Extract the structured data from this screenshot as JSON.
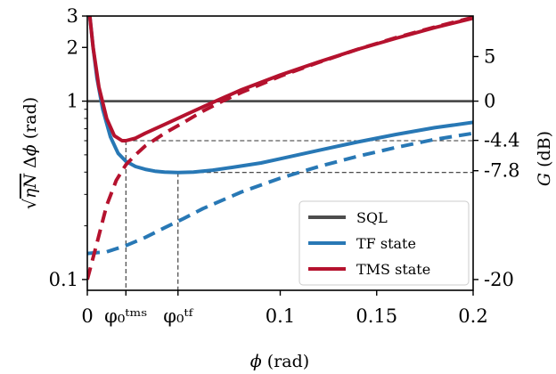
{
  "chart_data": {
    "type": "line",
    "xlabel": "φ (rad)",
    "ylabel": "√(ηN) Δφ (rad)",
    "ylabel_right": "G (dB)",
    "xlim": [
      0,
      0.2
    ],
    "ylim": [
      0.087,
      3
    ],
    "yscale": "log",
    "x_ticks": [
      {
        "value": 0,
        "label": "0"
      },
      {
        "value": 0.02,
        "label": "φ₀ᵗᵐˢ"
      },
      {
        "value": 0.047,
        "label": "φ₀ᵗᶠ"
      },
      {
        "value": 0.1,
        "label": "0.1"
      },
      {
        "value": 0.15,
        "label": "0.15"
      },
      {
        "value": 0.2,
        "label": "0.2"
      }
    ],
    "y_ticks": [
      {
        "value": 3,
        "label": "3"
      },
      {
        "value": 2,
        "label": "2"
      },
      {
        "value": 1,
        "label": "1"
      },
      {
        "value": 0.1,
        "label": "0.1"
      }
    ],
    "y_right_ticks": [
      {
        "value": 5,
        "label": "5"
      },
      {
        "value": 0,
        "label": "0"
      },
      {
        "value": -4.4,
        "label": "-4.4"
      },
      {
        "value": -7.8,
        "label": "-7.8"
      },
      {
        "value": -20,
        "label": "-20"
      }
    ],
    "legend": {
      "position": "lower-right",
      "entries": [
        "SQL",
        "TF state",
        "TMS state"
      ]
    },
    "series": [
      {
        "name": "SQL",
        "color": "#4d4d4d",
        "style": "solid",
        "x": [
          0,
          0.2
        ],
        "y": [
          1,
          1
        ]
      },
      {
        "name": "TF state",
        "color": "#2878b5",
        "style": "solid",
        "x": [
          0.001,
          0.003,
          0.005,
          0.008,
          0.012,
          0.016,
          0.02,
          0.025,
          0.03,
          0.035,
          0.04,
          0.047,
          0.055,
          0.065,
          0.075,
          0.09,
          0.1,
          0.12,
          0.14,
          0.16,
          0.18,
          0.2
        ],
        "y": [
          3.2,
          2.0,
          1.35,
          0.9,
          0.63,
          0.51,
          0.46,
          0.43,
          0.415,
          0.405,
          0.4,
          0.398,
          0.4,
          0.41,
          0.425,
          0.45,
          0.475,
          0.53,
          0.59,
          0.65,
          0.71,
          0.76
        ]
      },
      {
        "name": "TF state (limit)",
        "color": "#2878b5",
        "style": "dashed",
        "x": [
          0,
          0.01,
          0.02,
          0.03,
          0.04,
          0.05,
          0.06,
          0.08,
          0.1,
          0.12,
          0.14,
          0.16,
          0.18,
          0.2
        ],
        "y": [
          0.14,
          0.143,
          0.155,
          0.172,
          0.195,
          0.22,
          0.25,
          0.31,
          0.37,
          0.43,
          0.49,
          0.55,
          0.61,
          0.66
        ]
      },
      {
        "name": "TMS state",
        "color": "#b5122e",
        "style": "solid",
        "x": [
          0.001,
          0.003,
          0.006,
          0.01,
          0.014,
          0.018,
          0.02,
          0.025,
          0.03,
          0.04,
          0.05,
          0.06,
          0.07,
          0.08,
          0.1,
          0.12,
          0.14,
          0.16,
          0.18,
          0.2
        ],
        "y": [
          3.2,
          2.0,
          1.2,
          0.8,
          0.64,
          0.6,
          0.6,
          0.62,
          0.66,
          0.74,
          0.83,
          0.93,
          1.04,
          1.16,
          1.4,
          1.66,
          1.95,
          2.25,
          2.58,
          2.92
        ]
      },
      {
        "name": "TMS state (limit)",
        "color": "#b5122e",
        "style": "dashed",
        "x": [
          0,
          0.005,
          0.01,
          0.015,
          0.02,
          0.025,
          0.03,
          0.04,
          0.05,
          0.06,
          0.07,
          0.08,
          0.1,
          0.12,
          0.14,
          0.16,
          0.18,
          0.2
        ],
        "y": [
          0.1,
          0.16,
          0.26,
          0.36,
          0.44,
          0.5,
          0.56,
          0.66,
          0.76,
          0.88,
          1.0,
          1.12,
          1.38,
          1.65,
          1.95,
          2.27,
          2.6,
          2.95
        ]
      }
    ],
    "guides": [
      {
        "x": 0.02,
        "y": 0.6
      },
      {
        "x": 0.047,
        "y": 0.398
      }
    ]
  }
}
